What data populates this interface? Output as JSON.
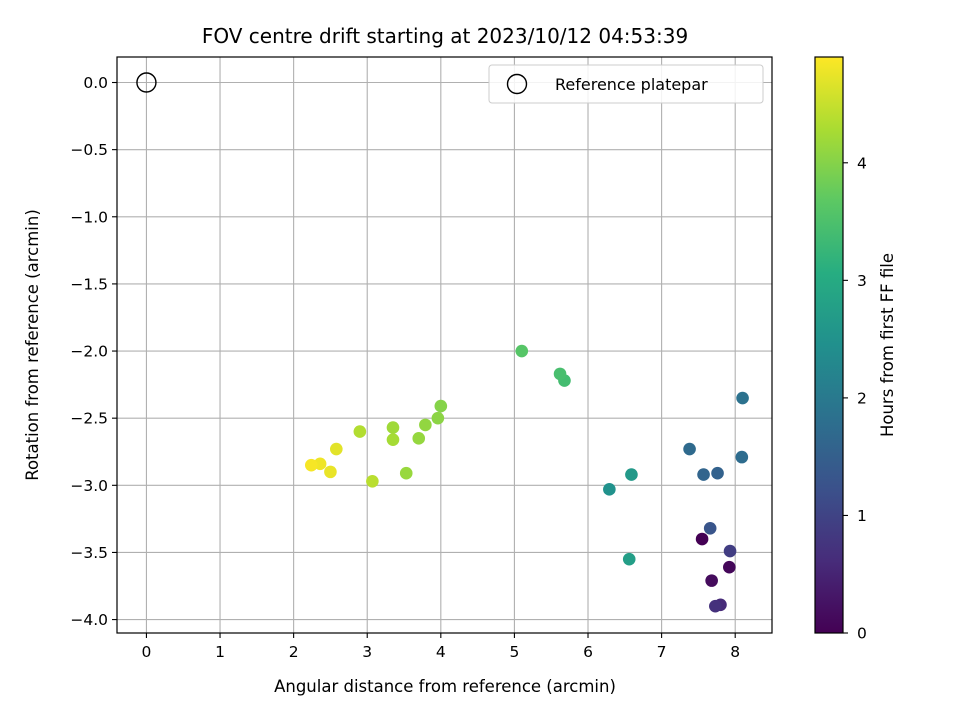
{
  "chart_data": {
    "type": "scatter",
    "title": "FOV centre drift starting at 2023/10/12 04:53:39",
    "xlabel": "Angular distance from reference (arcmin)",
    "ylabel": "Rotation from reference (arcmin)",
    "xlim": [
      -0.4,
      8.5
    ],
    "ylim": [
      -4.1,
      0.19
    ],
    "xticks": [
      0,
      1,
      2,
      3,
      4,
      5,
      6,
      7,
      8
    ],
    "yticks": [
      0.0,
      -0.5,
      -1.0,
      -1.5,
      -2.0,
      -2.5,
      -3.0,
      -3.5,
      -4.0
    ],
    "x_tick_labels": [
      "0",
      "1",
      "2",
      "3",
      "4",
      "5",
      "6",
      "7",
      "8"
    ],
    "y_tick_labels": [
      "0.0",
      "−0.5",
      "−1.0",
      "−1.5",
      "−2.0",
      "−2.5",
      "−3.0",
      "−3.5",
      "−4.0"
    ],
    "grid": true,
    "colormap": "viridis",
    "colorbar": {
      "label": "Hours from first FF file",
      "range": [
        0,
        4.9
      ],
      "ticks": [
        0,
        1,
        2,
        3,
        4
      ],
      "tick_labels": [
        "0",
        "1",
        "2",
        "3",
        "4"
      ]
    },
    "reference": {
      "name": "Reference platepar",
      "x": 0.0,
      "y": 0.0
    },
    "legend": {
      "position": "top-right",
      "entries": [
        "Reference platepar"
      ]
    },
    "points": [
      {
        "x": 7.55,
        "y": -3.4,
        "h": 0.0
      },
      {
        "x": 7.92,
        "y": -3.61,
        "h": 0.08
      },
      {
        "x": 7.68,
        "y": -3.71,
        "h": 0.15
      },
      {
        "x": 7.8,
        "y": -3.89,
        "h": 0.6
      },
      {
        "x": 7.73,
        "y": -3.9,
        "h": 0.7
      },
      {
        "x": 7.93,
        "y": -3.49,
        "h": 0.9
      },
      {
        "x": 7.66,
        "y": -3.32,
        "h": 1.3
      },
      {
        "x": 7.76,
        "y": -2.91,
        "h": 1.55
      },
      {
        "x": 7.57,
        "y": -2.92,
        "h": 1.6
      },
      {
        "x": 7.38,
        "y": -2.73,
        "h": 1.7
      },
      {
        "x": 8.09,
        "y": -2.79,
        "h": 1.75
      },
      {
        "x": 8.1,
        "y": -2.35,
        "h": 1.85
      },
      {
        "x": 6.29,
        "y": -3.03,
        "h": 2.5
      },
      {
        "x": 6.59,
        "y": -2.92,
        "h": 2.65
      },
      {
        "x": 6.56,
        "y": -3.55,
        "h": 2.75
      },
      {
        "x": 5.68,
        "y": -2.22,
        "h": 3.4
      },
      {
        "x": 5.62,
        "y": -2.17,
        "h": 3.45
      },
      {
        "x": 5.1,
        "y": -2.0,
        "h": 3.6
      },
      {
        "x": 4.0,
        "y": -2.41,
        "h": 4.0
      },
      {
        "x": 3.96,
        "y": -2.5,
        "h": 4.05
      },
      {
        "x": 3.79,
        "y": -2.55,
        "h": 4.1
      },
      {
        "x": 3.7,
        "y": -2.65,
        "h": 4.12
      },
      {
        "x": 3.53,
        "y": -2.91,
        "h": 4.15
      },
      {
        "x": 3.35,
        "y": -2.57,
        "h": 4.2
      },
      {
        "x": 3.35,
        "y": -2.66,
        "h": 4.25
      },
      {
        "x": 2.9,
        "y": -2.6,
        "h": 4.35
      },
      {
        "x": 3.07,
        "y": -2.97,
        "h": 4.4
      },
      {
        "x": 2.58,
        "y": -2.73,
        "h": 4.7
      },
      {
        "x": 2.5,
        "y": -2.9,
        "h": 4.75
      },
      {
        "x": 2.36,
        "y": -2.84,
        "h": 4.8
      },
      {
        "x": 2.24,
        "y": -2.85,
        "h": 4.85
      }
    ]
  }
}
